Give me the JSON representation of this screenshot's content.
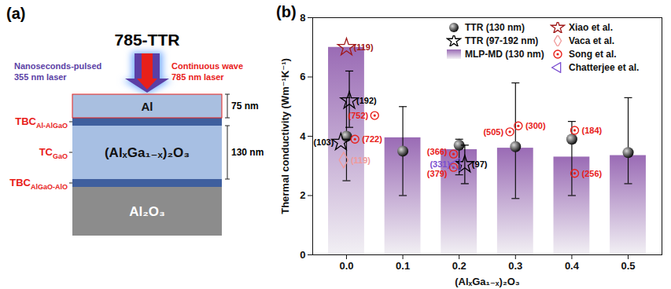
{
  "diagram": {
    "panel_label": "(a)",
    "title": "785-TTR",
    "pump_label": [
      "Nanoseconds-pulsed",
      "355 nm laser"
    ],
    "pump_color": "#5b3fa5",
    "probe_label": [
      "Continuous wave",
      "785 nm laser"
    ],
    "probe_color": "#e8201a",
    "layers": [
      {
        "name": "Al",
        "thickness_label": "75 nm"
      },
      {
        "name": "(AlₓGa₁₋ₓ)₂O₃",
        "thickness_label": "130 nm"
      },
      {
        "name": "Al₂O₃"
      }
    ],
    "interfaces": [
      {
        "main": "TBC",
        "sub": "Al-AlGaO"
      },
      {
        "main": "TC",
        "sub": "GaO"
      },
      {
        "main": "TBC",
        "sub": "AlGaO-AlO"
      }
    ]
  },
  "chart_data": {
    "type": "scatter",
    "title": "(b)",
    "x_label": "(AlₓGa₁₋ₓ)₂O₃",
    "y_label": "Thermal conductivity (Wm⁻¹K⁻¹)",
    "xlim": [
      -0.06,
      0.56
    ],
    "xticks": [
      {
        "value": 0,
        "label": "0.0"
      },
      {
        "value": 0.1,
        "label": "0.1"
      },
      {
        "value": 0.2,
        "label": "0.2"
      },
      {
        "value": 0.3,
        "label": "0.3"
      },
      {
        "value": 0.4,
        "label": "0.4"
      },
      {
        "value": 0.5,
        "label": "0.5"
      }
    ],
    "ylim": [
      0,
      8
    ],
    "yticks": [
      0,
      2,
      4,
      6,
      8
    ],
    "grid": false,
    "legend": "top-right",
    "series": [
      {
        "name": "TTR (130 nm)",
        "type": "scatter",
        "marker": "sphere",
        "color": "#111111",
        "x": [
          0,
          0.1,
          0.2,
          0.3,
          0.4,
          0.5
        ],
        "values": [
          4.0,
          3.5,
          3.7,
          3.65,
          3.9,
          3.45
        ],
        "error_low": [
          2.5,
          2.0,
          2.7,
          1.9,
          2.0,
          2.4
        ],
        "error_high": [
          5.3,
          5.0,
          3.9,
          5.8,
          4.5,
          5.3
        ]
      },
      {
        "name": "TTR (97-192 nm)",
        "type": "scatter",
        "marker": "star-open",
        "color": "#000000",
        "x": [
          -0.01,
          0.005,
          0.21
        ],
        "values": [
          3.8,
          5.2,
          3.05
        ],
        "error_low": [
          null,
          4.3,
          2.4
        ],
        "error_high": [
          null,
          6.2,
          3.7
        ],
        "point_labels": [
          "(103)",
          "(192)",
          "(97)"
        ]
      },
      {
        "name": "MLP-MD (130 nm)",
        "type": "bar",
        "color": "#9a6bb5",
        "x": [
          0,
          0.1,
          0.2,
          0.3,
          0.4,
          0.5
        ],
        "values": [
          7.0,
          3.95,
          3.55,
          3.6,
          3.3,
          3.35
        ]
      },
      {
        "name": "Xiao et al.",
        "type": "scatter",
        "marker": "star-open",
        "color": "#a01818",
        "x": [
          0
        ],
        "values": [
          7.0
        ],
        "point_labels": [
          "(119)"
        ]
      },
      {
        "name": "Vaca et al.",
        "type": "scatter",
        "marker": "diamond-open",
        "color": "#f09a9a",
        "x": [
          -0.005
        ],
        "values": [
          3.2
        ],
        "point_labels": [
          "(119)"
        ]
      },
      {
        "name": "Song et al.",
        "type": "scatter",
        "marker": "circle-dot",
        "color": "#e8201a",
        "x": [
          0.015,
          0.05,
          0.19,
          0.19,
          0.29,
          0.305,
          0.405,
          0.405
        ],
        "values": [
          3.9,
          4.7,
          3.4,
          2.95,
          4.15,
          4.35,
          4.2,
          2.75
        ],
        "point_labels": [
          "(722)",
          "(752)",
          "(366)",
          "(379)",
          "(505)",
          "(300)",
          "(184)",
          "(256)"
        ]
      },
      {
        "name": "Chatterjee et al.",
        "type": "scatter",
        "marker": "triangle-left-open",
        "color": "#7b4fd0",
        "x": [
          0.195
        ],
        "values": [
          3.05
        ],
        "point_labels": [
          "(331)"
        ]
      }
    ]
  }
}
